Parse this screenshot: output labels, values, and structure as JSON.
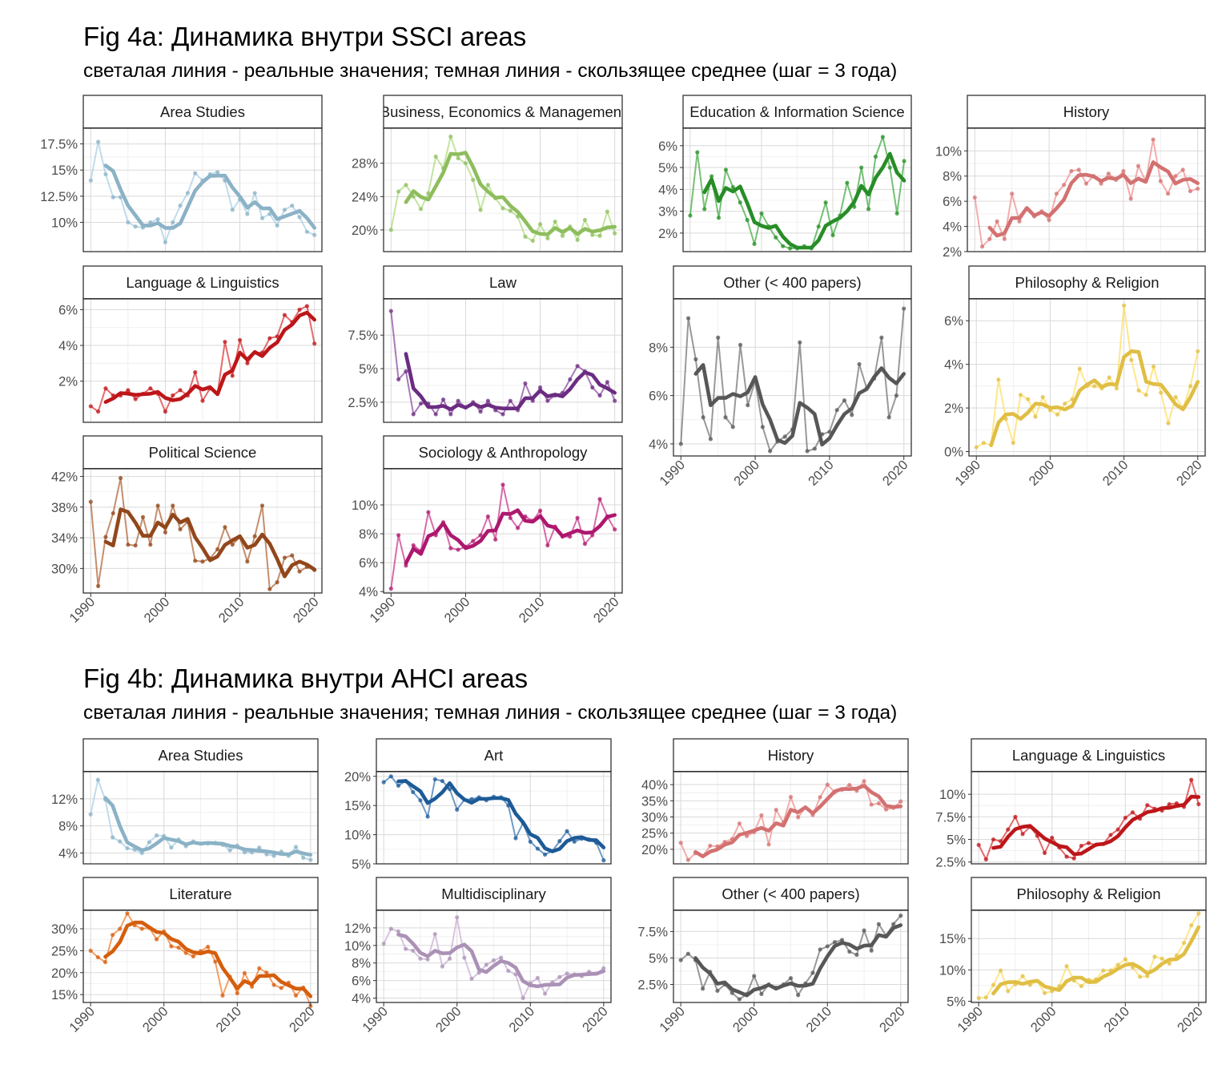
{
  "fig_a": {
    "title": "Fig 4a: Динамика внутри SSCI areas",
    "subtitle": "светалая линия - реальные значения; темная линия - скользящее среднее (шаг = 3 года)"
  },
  "fig_b": {
    "title": "Fig 4b: Динамика внутри AHCI areas",
    "subtitle": "светалая линия - реальные значения; темная линия - скользящее среднее (шаг = 3 года)"
  },
  "chart_data": [
    {
      "type": "line",
      "title": "Fig 4a: Динамика внутри SSCI areas",
      "subtitle": "светалая линия - реальные значения; темная линия - скользящее среднее (шаг = 3 года)",
      "x_ticks": [
        1990,
        2000,
        2010,
        2020
      ],
      "xlim": [
        1989,
        2021
      ],
      "grid": true,
      "panels": [
        {
          "name": "Area Studies",
          "color": "#9ecae1",
          "ylim": [
            7.2,
            19.0
          ],
          "yticks": [
            10,
            12.5,
            15,
            17.5
          ],
          "ytick_labels": [
            "10%",
            "12.5%",
            "15%",
            "17.5%"
          ],
          "real": [
            14.0,
            17.7,
            14.6,
            12.4,
            12.4,
            10.0,
            9.6,
            9.5,
            10.0,
            10.3,
            8.1,
            10.0,
            11.6,
            12.8,
            14.7,
            14.0,
            14.6,
            14.8,
            14.0,
            11.2,
            12.2,
            10.8,
            12.8,
            10.4,
            10.8,
            9.7,
            11.2,
            11.6,
            10.5,
            9.1,
            8.8
          ]
        },
        {
          "name": "Business, Economics & Management",
          "color": "#a1d76a",
          "ylim": [
            17.4,
            32.2
          ],
          "yticks": [
            20,
            24,
            28
          ],
          "ytick_labels": [
            "20%",
            "24%",
            "28%"
          ],
          "real": [
            20.0,
            24.6,
            25.4,
            24.0,
            22.5,
            24.4,
            28.8,
            27.4,
            31.2,
            28.6,
            28.0,
            26.0,
            22.4,
            25.4,
            23.8,
            22.6,
            22.3,
            21.6,
            19.2,
            18.7,
            20.7,
            19.0,
            21.0,
            19.3,
            20.4,
            18.8,
            21.2,
            19.4,
            19.3,
            22.2,
            19.6
          ]
        },
        {
          "name": "Education & Information Science",
          "color": "#2ca02c",
          "ylim": [
            1.15,
            6.8
          ],
          "yticks": [
            2,
            3,
            4,
            5,
            6
          ],
          "ytick_labels": [
            "2%",
            "3%",
            "4%",
            "5%",
            "6%"
          ],
          "real": [
            2.8,
            5.7,
            3.1,
            4.6,
            2.7,
            4.9,
            4.1,
            3.4,
            2.6,
            1.5,
            2.9,
            2.3,
            1.8,
            1.4,
            1.3,
            1.3,
            1.4,
            1.3,
            2.3,
            3.4,
            1.9,
            2.8,
            4.3,
            3.2,
            5.0,
            3.1,
            5.5,
            6.4,
            5.0,
            2.9,
            5.3
          ]
        },
        {
          "name": "History",
          "color": "#f08080",
          "ylim": [
            2.0,
            11.8
          ],
          "yticks": [
            2,
            4,
            6,
            8,
            10
          ],
          "ytick_labels": [
            "2%",
            "4%",
            "6%",
            "8%",
            "10%"
          ],
          "real": [
            6.3,
            2.4,
            3.0,
            4.4,
            3.0,
            6.6,
            4.4,
            5.4,
            4.8,
            5.2,
            4.5,
            6.6,
            7.3,
            8.4,
            8.5,
            7.4,
            8.0,
            7.4,
            8.2,
            7.7,
            8.4,
            6.2,
            8.8,
            7.6,
            10.9,
            7.6,
            6.6,
            8.0,
            8.5,
            6.8,
            7.0
          ]
        },
        {
          "name": "Language & Linguistics",
          "color": "#d7191c",
          "ylim": [
            -0.3,
            6.6
          ],
          "yticks": [
            2,
            4,
            6
          ],
          "ytick_labels": [
            "2%",
            "4%",
            "6%"
          ],
          "real": [
            0.6,
            0.3,
            1.6,
            1.2,
            1.2,
            1.5,
            1.0,
            1.3,
            1.6,
            1.3,
            0.3,
            1.2,
            1.5,
            1.2,
            2.5,
            0.9,
            1.6,
            1.3,
            4.2,
            2.3,
            4.3,
            3.0,
            3.6,
            3.6,
            4.4,
            4.5,
            5.7,
            5.3,
            6.0,
            6.2,
            4.1
          ]
        },
        {
          "name": "Law",
          "color": "#7b3294",
          "ylim": [
            1.0,
            10.2
          ],
          "yticks": [
            2.5,
            5,
            7.5
          ],
          "ytick_labels": [
            "2.5%",
            "5%",
            "7.5%"
          ],
          "real": [
            9.3,
            4.2,
            4.8,
            1.6,
            2.4,
            2.4,
            1.6,
            2.7,
            1.6,
            2.6,
            2.1,
            2.5,
            1.8,
            2.6,
            1.9,
            1.6,
            2.6,
            1.9,
            3.9,
            2.6,
            3.6,
            2.6,
            3.0,
            3.2,
            4.2,
            5.2,
            4.8,
            3.6,
            3.0,
            4.0,
            2.6
          ]
        },
        {
          "name": "Other (< 400 papers)",
          "color": "#636363",
          "ylim": [
            3.5,
            10.0
          ],
          "yticks": [
            4,
            6,
            8
          ],
          "ytick_labels": [
            "4%",
            "6%",
            "8%"
          ],
          "real": [
            4.0,
            9.2,
            7.5,
            5.1,
            4.2,
            8.4,
            5.1,
            4.7,
            8.1,
            5.6,
            6.6,
            4.7,
            3.7,
            4.1,
            4.3,
            4.6,
            8.2,
            3.7,
            3.8,
            4.4,
            4.5,
            5.4,
            5.8,
            5.2,
            7.3,
            6.3,
            6.7,
            8.4,
            5.1,
            6.0,
            9.6
          ]
        },
        {
          "name": "Philosophy & Religion",
          "color": "#ffd84d",
          "ylim": [
            -0.2,
            7.0
          ],
          "yticks": [
            0,
            2,
            4,
            6
          ],
          "ytick_labels": [
            "0%",
            "2%",
            "4%",
            "6%"
          ],
          "real": [
            0.2,
            0.4,
            0.3,
            3.3,
            1.5,
            0.4,
            2.6,
            2.4,
            1.6,
            2.5,
            1.9,
            1.7,
            2.2,
            2.4,
            3.8,
            3.0,
            3.0,
            2.9,
            3.4,
            2.9,
            6.7,
            4.2,
            2.8,
            2.6,
            3.9,
            2.7,
            1.3,
            2.5,
            2.0,
            3.0,
            4.6
          ]
        },
        {
          "name": "Political Science",
          "color": "#a6511f",
          "ylim": [
            26.8,
            43.0
          ],
          "yticks": [
            30,
            34,
            38,
            42
          ],
          "ytick_labels": [
            "30%",
            "34%",
            "38%",
            "42%"
          ],
          "real": [
            38.7,
            27.7,
            34.1,
            37.2,
            41.8,
            33.1,
            33.0,
            36.7,
            33.1,
            38.2,
            34.7,
            38.2,
            35.1,
            36.1,
            31.0,
            30.9,
            31.3,
            32.5,
            35.4,
            33.1,
            34.1,
            30.9,
            34.2,
            38.2,
            27.3,
            28.2,
            31.4,
            31.7,
            29.6,
            30.2,
            29.8
          ]
        },
        {
          "name": "Sociology & Anthropology",
          "color": "#c51b7d",
          "ylim": [
            3.9,
            12.5
          ],
          "yticks": [
            4,
            6,
            8,
            10
          ],
          "ytick_labels": [
            "4%",
            "6%",
            "8%",
            "10%"
          ],
          "real": [
            4.2,
            7.9,
            5.8,
            7.2,
            6.8,
            9.5,
            7.9,
            8.8,
            7.0,
            6.9,
            7.1,
            7.5,
            7.9,
            9.2,
            7.6,
            11.4,
            9.1,
            8.4,
            9.2,
            8.9,
            9.6,
            7.2,
            8.5,
            7.8,
            7.8,
            9.1,
            7.3,
            7.9,
            10.4,
            9.2,
            8.3
          ]
        }
      ]
    },
    {
      "type": "line",
      "title": "Fig 4b: Динамика внутри AHCI areas",
      "subtitle": "светалая линия - реальные значения; темная линия - скользящее среднее (шаг = 3 года)",
      "x_ticks": [
        1990,
        2000,
        2010,
        2020
      ],
      "xlim": [
        1989,
        2021
      ],
      "grid": true,
      "panels": [
        {
          "name": "Area Studies",
          "color": "#9ecae1",
          "ylim": [
            2.4,
            16.0
          ],
          "yticks": [
            4,
            8,
            12
          ],
          "ytick_labels": [
            "4%",
            "8%",
            "12%"
          ],
          "real": [
            9.7,
            14.8,
            11.9,
            6.3,
            5.7,
            4.7,
            4.5,
            4.0,
            5.6,
            6.6,
            6.5,
            4.8,
            6.0,
            5.0,
            5.7,
            5.4,
            5.4,
            5.5,
            5.2,
            4.4,
            5.1,
            4.1,
            4.1,
            4.8,
            3.8,
            3.6,
            4.2,
            3.6,
            4.9,
            3.3,
            3.0
          ]
        },
        {
          "name": "Art",
          "color": "#2166ac",
          "ylim": [
            5.0,
            20.8
          ],
          "yticks": [
            5,
            10,
            15,
            20
          ],
          "ytick_labels": [
            "5%",
            "10%",
            "15%",
            "20%"
          ],
          "real": [
            19.0,
            20.0,
            18.4,
            19.2,
            17.3,
            15.9,
            13.1,
            19.5,
            19.2,
            17.8,
            14.3,
            16.0,
            16.1,
            16.4,
            15.9,
            16.5,
            16.4,
            15.0,
            9.4,
            12.0,
            8.8,
            7.6,
            6.6,
            7.2,
            8.9,
            10.6,
            8.8,
            9.3,
            9.2,
            8.6,
            5.6
          ]
        },
        {
          "name": "History",
          "color": "#f08080",
          "ylim": [
            15.5,
            44.0
          ],
          "yticks": [
            20,
            25,
            30,
            35,
            40
          ],
          "ytick_labels": [
            "20%",
            "25%",
            "30%",
            "35%",
            "40%"
          ],
          "real": [
            22.0,
            16.7,
            18.8,
            17.9,
            21.1,
            20.9,
            22.3,
            23.2,
            28.0,
            24.1,
            25.3,
            30.5,
            21.5,
            32.2,
            28.3,
            36.2,
            29.9,
            32.9,
            30.6,
            36.1,
            40.0,
            37.6,
            38.4,
            39.9,
            38.1,
            41.1,
            33.8,
            34.2,
            32.3,
            32.8,
            34.8
          ]
        },
        {
          "name": "Language & Linguistics",
          "color": "#d7191c",
          "ylim": [
            2.3,
            12.5
          ],
          "yticks": [
            2.5,
            5,
            7.5,
            10
          ],
          "ytick_labels": [
            "2.5%",
            "5%",
            "7.5%",
            "10%"
          ],
          "real": [
            4.4,
            2.8,
            5.0,
            4.8,
            6.1,
            7.5,
            5.6,
            6.4,
            5.4,
            3.5,
            5.2,
            4.1,
            3.1,
            2.9,
            4.3,
            4.6,
            4.4,
            4.5,
            5.5,
            6.1,
            7.4,
            8.0,
            7.3,
            8.8,
            8.4,
            8.2,
            8.9,
            9.0,
            8.6,
            11.6,
            8.9
          ]
        },
        {
          "name": "Literature",
          "color": "#f26b0f",
          "ylim": [
            13.2,
            34.2
          ],
          "yticks": [
            15,
            20,
            25,
            30
          ],
          "ytick_labels": [
            "15%",
            "20%",
            "25%",
            "30%"
          ],
          "real": [
            25.0,
            23.5,
            22.4,
            28.6,
            30.0,
            33.5,
            30.8,
            30.0,
            30.2,
            27.6,
            29.4,
            26.0,
            25.7,
            24.5,
            23.7,
            24.9,
            25.9,
            22.5,
            14.8,
            19.1,
            15.3,
            19.9,
            16.8,
            21.0,
            20.0,
            17.2,
            16.5,
            17.7,
            14.8,
            16.6,
            12.4
          ]
        },
        {
          "name": "Multidisciplinary",
          "color": "#c2a5cf",
          "ylim": [
            3.5,
            14.0
          ],
          "yticks": [
            4,
            6,
            8,
            10,
            12
          ],
          "ytick_labels": [
            "4%",
            "6%",
            "8%",
            "10%",
            "12%"
          ],
          "real": [
            10.2,
            11.9,
            11.6,
            9.6,
            9.4,
            8.5,
            8.4,
            11.3,
            7.6,
            8.5,
            13.2,
            8.6,
            6.2,
            6.9,
            7.8,
            8.3,
            8.6,
            7.1,
            6.7,
            4.0,
            5.7,
            6.3,
            4.5,
            5.8,
            6.4,
            6.8,
            6.7,
            6.5,
            7.0,
            6.8,
            7.4
          ]
        },
        {
          "name": "Other (< 400 papers)",
          "color": "#636363",
          "ylim": [
            0.8,
            9.5
          ],
          "yticks": [
            2.5,
            5,
            7.5
          ],
          "ytick_labels": [
            "2.5%",
            "5%",
            "7.5%"
          ],
          "real": [
            4.8,
            5.4,
            4.8,
            2.1,
            3.7,
            1.9,
            2.5,
            1.7,
            1.1,
            1.6,
            3.3,
            1.6,
            2.5,
            2.2,
            2.5,
            3.1,
            1.5,
            2.6,
            3.6,
            5.8,
            6.1,
            6.5,
            6.7,
            5.6,
            5.3,
            7.6,
            5.7,
            8.2,
            7.1,
            8.2,
            9.0
          ]
        },
        {
          "name": "Philosophy & Religion",
          "color": "#ffd84d",
          "ylim": [
            4.8,
            19.5
          ],
          "yticks": [
            5,
            10,
            15
          ],
          "ytick_labels": [
            "5%",
            "10%",
            "15%"
          ],
          "real": [
            5.5,
            5.6,
            7.6,
            9.9,
            6.6,
            7.7,
            9.0,
            7.6,
            8.2,
            6.3,
            6.6,
            7.4,
            10.6,
            8.3,
            7.4,
            8.4,
            8.5,
            9.9,
            9.9,
            10.8,
            11.7,
            10.4,
            8.9,
            9.0,
            12.1,
            11.8,
            11.0,
            12.3,
            14.3,
            17.1,
            19.0
          ]
        }
      ]
    }
  ]
}
